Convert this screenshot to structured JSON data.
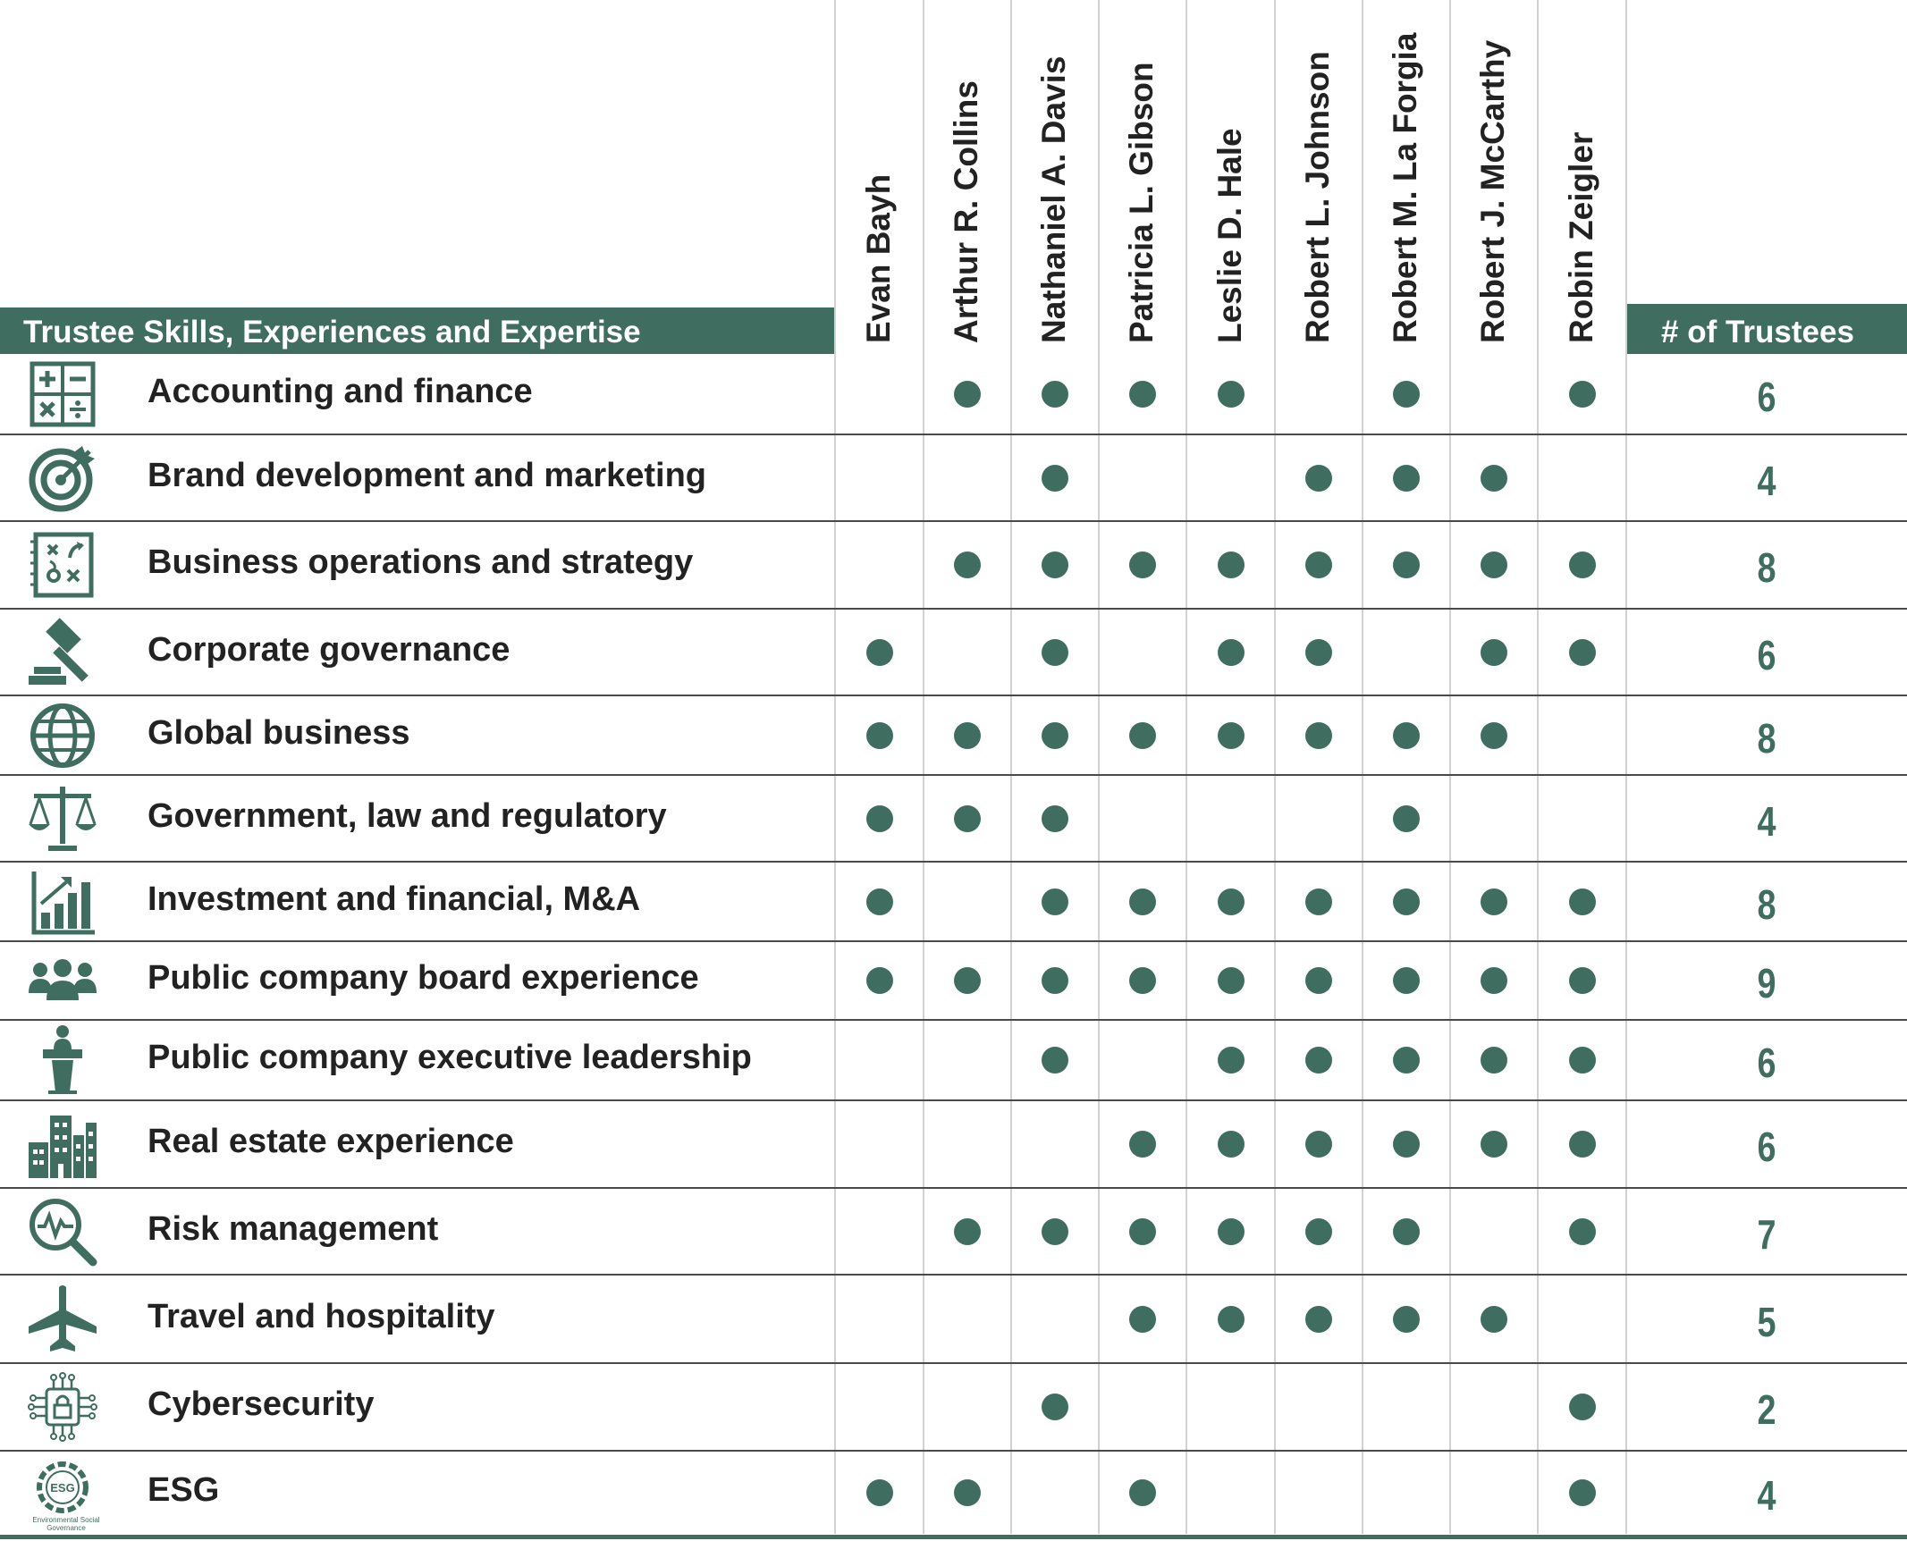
{
  "header": {
    "skills_title": "Trustee Skills, Experiences and Expertise",
    "count_title": "# of Trustees"
  },
  "trustees": [
    "Evan Bayh",
    "Arthur R. Collins",
    "Nathaniel A. Davis",
    "Patricia L. Gibson",
    "Leslie D. Hale",
    "Robert L. Johnson",
    "Robert M. La Forgia",
    "Robert J. McCarthy",
    "Robin Zeigler"
  ],
  "accent_color": "#3f6e60",
  "rows": [
    {
      "icon": "calculator-icon",
      "label": "Accounting and finance",
      "marks": [
        0,
        1,
        1,
        1,
        1,
        0,
        1,
        0,
        1
      ],
      "count": "6"
    },
    {
      "icon": "target-icon",
      "label": "Brand development and marketing",
      "marks": [
        0,
        0,
        1,
        0,
        0,
        1,
        1,
        1,
        0
      ],
      "count": "4"
    },
    {
      "icon": "strategy-board-icon",
      "label": "Business operations and strategy",
      "marks": [
        0,
        1,
        1,
        1,
        1,
        1,
        1,
        1,
        1
      ],
      "count": "8"
    },
    {
      "icon": "gavel-icon",
      "label": "Corporate governance",
      "marks": [
        1,
        0,
        1,
        0,
        1,
        1,
        0,
        1,
        1
      ],
      "count": "6"
    },
    {
      "icon": "globe-icon",
      "label": "Global business",
      "marks": [
        1,
        1,
        1,
        1,
        1,
        1,
        1,
        1,
        0
      ],
      "count": "8"
    },
    {
      "icon": "scales-icon",
      "label": "Government, law and regulatory",
      "marks": [
        1,
        1,
        1,
        0,
        0,
        0,
        1,
        0,
        0
      ],
      "count": "4"
    },
    {
      "icon": "bar-growth-icon",
      "label": "Investment and financial, M&A",
      "marks": [
        1,
        0,
        1,
        1,
        1,
        1,
        1,
        1,
        1
      ],
      "count": "8"
    },
    {
      "icon": "people-group-icon",
      "label": "Public company board experience",
      "marks": [
        1,
        1,
        1,
        1,
        1,
        1,
        1,
        1,
        1
      ],
      "count": "9"
    },
    {
      "icon": "podium-speaker-icon",
      "label": "Public company executive leadership",
      "marks": [
        0,
        0,
        1,
        0,
        1,
        1,
        1,
        1,
        1
      ],
      "count": "6"
    },
    {
      "icon": "buildings-icon",
      "label": "Real estate experience",
      "marks": [
        0,
        0,
        0,
        1,
        1,
        1,
        1,
        1,
        1
      ],
      "count": "6"
    },
    {
      "icon": "risk-magnifier-icon",
      "label": "Risk management",
      "marks": [
        0,
        1,
        1,
        1,
        1,
        1,
        1,
        0,
        1
      ],
      "count": "7"
    },
    {
      "icon": "airplane-icon",
      "label": "Travel and hospitality",
      "marks": [
        0,
        0,
        0,
        1,
        1,
        1,
        1,
        1,
        0
      ],
      "count": "5"
    },
    {
      "icon": "cyber-lock-icon",
      "label": "Cybersecurity",
      "marks": [
        0,
        0,
        1,
        0,
        0,
        0,
        0,
        0,
        1
      ],
      "count": "2"
    },
    {
      "icon": "esg-gear-icon",
      "label": "ESG",
      "marks": [
        1,
        1,
        0,
        1,
        0,
        0,
        0,
        0,
        1
      ],
      "count": "4",
      "icon_caption": "Environmental Social Governance"
    }
  ]
}
